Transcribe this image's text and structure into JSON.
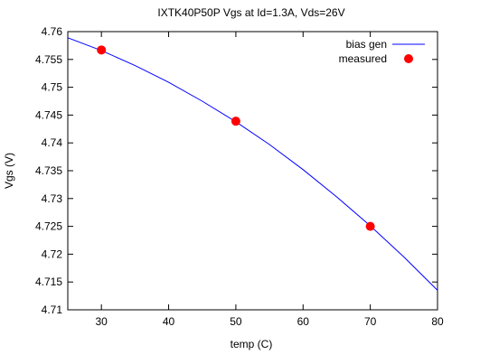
{
  "chart_data": {
    "type": "scatter",
    "title": "IXTK40P50P Vgs at Id=1.3A, Vds=26V",
    "xlabel": "temp (C)",
    "ylabel": "Vgs (V)",
    "xlim": [
      25,
      80
    ],
    "ylim": [
      4.71,
      4.76
    ],
    "x_ticks": [
      "30",
      "40",
      "50",
      "60",
      "70",
      "80"
    ],
    "y_ticks": [
      "4.71",
      "4.715",
      "4.72",
      "4.725",
      "4.73",
      "4.735",
      "4.74",
      "4.745",
      "4.75",
      "4.755",
      "4.76"
    ],
    "legend_position": "top-right",
    "grid": false,
    "series": [
      {
        "name": "bias gen",
        "kind": "line",
        "color": "#0000ff",
        "x": [
          25,
          30,
          35,
          40,
          45,
          50,
          55,
          60,
          65,
          70,
          75,
          80
        ],
        "y": [
          4.7589,
          4.7566,
          4.7539,
          4.7509,
          4.7475,
          4.7438,
          4.7397,
          4.7352,
          4.7303,
          4.7251,
          4.7195,
          4.7135
        ]
      },
      {
        "name": "measured",
        "kind": "points",
        "color": "#ff0000",
        "x": [
          30,
          50,
          70
        ],
        "y": [
          4.7567,
          4.7439,
          4.725
        ]
      }
    ]
  }
}
